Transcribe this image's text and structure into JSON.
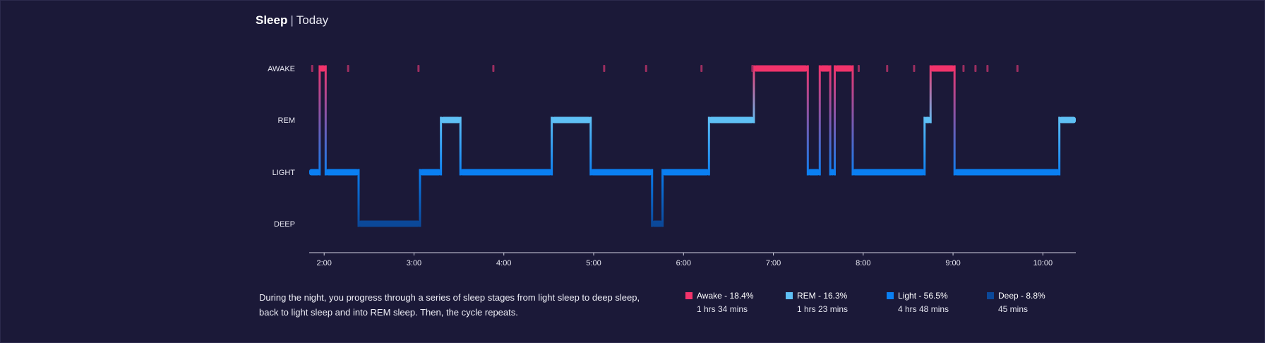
{
  "header": {
    "title": "Sleep",
    "separator": "|",
    "subtitle": "Today"
  },
  "chart_data": {
    "type": "line",
    "stages": [
      "AWAKE",
      "REM",
      "LIGHT",
      "DEEP"
    ],
    "colors": {
      "AWAKE": "#f2336b",
      "REM": "#5fc0f5",
      "LIGHT": "#0a7ff2",
      "DEEP": "#0b4899"
    },
    "x_ticks": [
      "2:00",
      "3:00",
      "4:00",
      "5:00",
      "6:00",
      "7:00",
      "8:00",
      "9:00",
      "10:00"
    ],
    "x_range": [
      "1:50",
      "10:22"
    ],
    "segments": [
      {
        "stage": "LIGHT",
        "start": "1:50",
        "end": "1:57"
      },
      {
        "stage": "AWAKE",
        "start": "1:57",
        "end": "2:01"
      },
      {
        "stage": "LIGHT",
        "start": "2:01",
        "end": "2:23"
      },
      {
        "stage": "DEEP",
        "start": "2:23",
        "end": "3:04"
      },
      {
        "stage": "LIGHT",
        "start": "3:04",
        "end": "3:18"
      },
      {
        "stage": "REM",
        "start": "3:18",
        "end": "3:31"
      },
      {
        "stage": "LIGHT",
        "start": "3:31",
        "end": "4:32"
      },
      {
        "stage": "REM",
        "start": "4:32",
        "end": "4:58"
      },
      {
        "stage": "LIGHT",
        "start": "4:58",
        "end": "5:39"
      },
      {
        "stage": "DEEP",
        "start": "5:39",
        "end": "5:46"
      },
      {
        "stage": "LIGHT",
        "start": "5:46",
        "end": "6:17"
      },
      {
        "stage": "REM",
        "start": "6:17",
        "end": "6:47"
      },
      {
        "stage": "AWAKE",
        "start": "6:47",
        "end": "7:23"
      },
      {
        "stage": "LIGHT",
        "start": "7:23",
        "end": "7:31"
      },
      {
        "stage": "AWAKE",
        "start": "7:31",
        "end": "7:38"
      },
      {
        "stage": "LIGHT",
        "start": "7:38",
        "end": "7:41"
      },
      {
        "stage": "AWAKE",
        "start": "7:41",
        "end": "7:53"
      },
      {
        "stage": "LIGHT",
        "start": "7:53",
        "end": "8:41"
      },
      {
        "stage": "REM",
        "start": "8:41",
        "end": "8:45"
      },
      {
        "stage": "AWAKE",
        "start": "8:45",
        "end": "9:01"
      },
      {
        "stage": "LIGHT",
        "start": "9:01",
        "end": "10:11"
      },
      {
        "stage": "REM",
        "start": "10:11",
        "end": "10:22"
      }
    ],
    "brief_awakenings": [
      "1:52",
      "2:16",
      "3:03",
      "3:53",
      "5:07",
      "5:35",
      "6:12",
      "6:46",
      "7:57",
      "8:16",
      "8:34",
      "9:07",
      "9:15",
      "9:23",
      "9:43"
    ]
  },
  "description": "During the night, you progress through a series of sleep stages from light sleep to deep sleep, back to light sleep and into REM sleep. Then, the cycle repeats.",
  "legend": [
    {
      "label": "Awake - 18.4%",
      "duration": "1 hrs 34 mins",
      "color": "#f2336b"
    },
    {
      "label": "REM - 16.3%",
      "duration": "1 hrs 23 mins",
      "color": "#5fc0f5"
    },
    {
      "label": "Light - 56.5%",
      "duration": "4 hrs 48 mins",
      "color": "#0a7ff2"
    },
    {
      "label": "Deep - 8.8%",
      "duration": "45 mins",
      "color": "#0b4899"
    }
  ]
}
